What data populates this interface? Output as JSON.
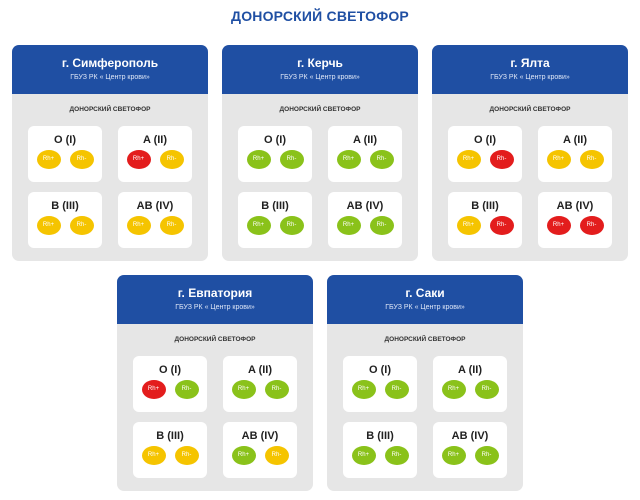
{
  "page": {
    "title": "ДОНОРСКИЙ СВЕТОФОР"
  },
  "colors": {
    "accent": "#1f4fa3",
    "yellow": "#f5c400",
    "green": "#8ac21a",
    "red": "#e31d1d"
  },
  "cards": [
    {
      "city": "г. Симферополь",
      "org": "ГБУЗ РК « Центр крови»",
      "subtitle": "ДОНОРСКИЙ СВЕТОФОР",
      "groups": [
        {
          "name": "O (I)",
          "rh": [
            {
              "label": "Rh+",
              "status": "yellow"
            },
            {
              "label": "Rh-",
              "status": "yellow"
            }
          ]
        },
        {
          "name": "A (II)",
          "rh": [
            {
              "label": "Rh+",
              "status": "red"
            },
            {
              "label": "Rh-",
              "status": "yellow"
            }
          ]
        },
        {
          "name": "B (III)",
          "rh": [
            {
              "label": "Rh+",
              "status": "yellow"
            },
            {
              "label": "Rh-",
              "status": "yellow"
            }
          ]
        },
        {
          "name": "AB (IV)",
          "rh": [
            {
              "label": "Rh+",
              "status": "yellow"
            },
            {
              "label": "Rh-",
              "status": "yellow"
            }
          ]
        }
      ]
    },
    {
      "city": "г. Керчь",
      "org": "ГБУЗ РК « Центр крови»",
      "subtitle": "ДОНОРСКИЙ СВЕТОФОР",
      "groups": [
        {
          "name": "O (I)",
          "rh": [
            {
              "label": "Rh+",
              "status": "green"
            },
            {
              "label": "Rh-",
              "status": "green"
            }
          ]
        },
        {
          "name": "A (II)",
          "rh": [
            {
              "label": "Rh+",
              "status": "green"
            },
            {
              "label": "Rh-",
              "status": "green"
            }
          ]
        },
        {
          "name": "B (III)",
          "rh": [
            {
              "label": "Rh+",
              "status": "green"
            },
            {
              "label": "Rh-",
              "status": "green"
            }
          ]
        },
        {
          "name": "AB (IV)",
          "rh": [
            {
              "label": "Rh+",
              "status": "green"
            },
            {
              "label": "Rh-",
              "status": "green"
            }
          ]
        }
      ]
    },
    {
      "city": "г. Ялта",
      "org": "ГБУЗ РК « Центр крови»",
      "subtitle": "ДОНОРСКИЙ СВЕТОФОР",
      "groups": [
        {
          "name": "O (I)",
          "rh": [
            {
              "label": "Rh+",
              "status": "yellow"
            },
            {
              "label": "Rh-",
              "status": "red"
            }
          ]
        },
        {
          "name": "A (II)",
          "rh": [
            {
              "label": "Rh+",
              "status": "yellow"
            },
            {
              "label": "Rh-",
              "status": "yellow"
            }
          ]
        },
        {
          "name": "B (III)",
          "rh": [
            {
              "label": "Rh+",
              "status": "yellow"
            },
            {
              "label": "Rh-",
              "status": "red"
            }
          ]
        },
        {
          "name": "AB (IV)",
          "rh": [
            {
              "label": "Rh+",
              "status": "red"
            },
            {
              "label": "Rh-",
              "status": "red"
            }
          ]
        }
      ]
    },
    {
      "city": "г. Евпатория",
      "org": "ГБУЗ РК « Центр крови»",
      "subtitle": "ДОНОРСКИЙ СВЕТОФОР",
      "groups": [
        {
          "name": "O (I)",
          "rh": [
            {
              "label": "Rh+",
              "status": "red"
            },
            {
              "label": "Rh-",
              "status": "green"
            }
          ]
        },
        {
          "name": "A (II)",
          "rh": [
            {
              "label": "Rh+",
              "status": "green"
            },
            {
              "label": "Rh-",
              "status": "green"
            }
          ]
        },
        {
          "name": "B (III)",
          "rh": [
            {
              "label": "Rh+",
              "status": "yellow"
            },
            {
              "label": "Rh-",
              "status": "yellow"
            }
          ]
        },
        {
          "name": "AB (IV)",
          "rh": [
            {
              "label": "Rh+",
              "status": "green"
            },
            {
              "label": "Rh-",
              "status": "yellow"
            }
          ]
        }
      ]
    },
    {
      "city": "г. Саки",
      "org": "ГБУЗ РК « Центр крови»",
      "subtitle": "ДОНОРСКИЙ СВЕТОФОР",
      "groups": [
        {
          "name": "O (I)",
          "rh": [
            {
              "label": "Rh+",
              "status": "green"
            },
            {
              "label": "Rh-",
              "status": "green"
            }
          ]
        },
        {
          "name": "A (II)",
          "rh": [
            {
              "label": "Rh+",
              "status": "green"
            },
            {
              "label": "Rh-",
              "status": "green"
            }
          ]
        },
        {
          "name": "B (III)",
          "rh": [
            {
              "label": "Rh+",
              "status": "green"
            },
            {
              "label": "Rh-",
              "status": "green"
            }
          ]
        },
        {
          "name": "AB (IV)",
          "rh": [
            {
              "label": "Rh+",
              "status": "green"
            },
            {
              "label": "Rh-",
              "status": "green"
            }
          ]
        }
      ]
    }
  ]
}
